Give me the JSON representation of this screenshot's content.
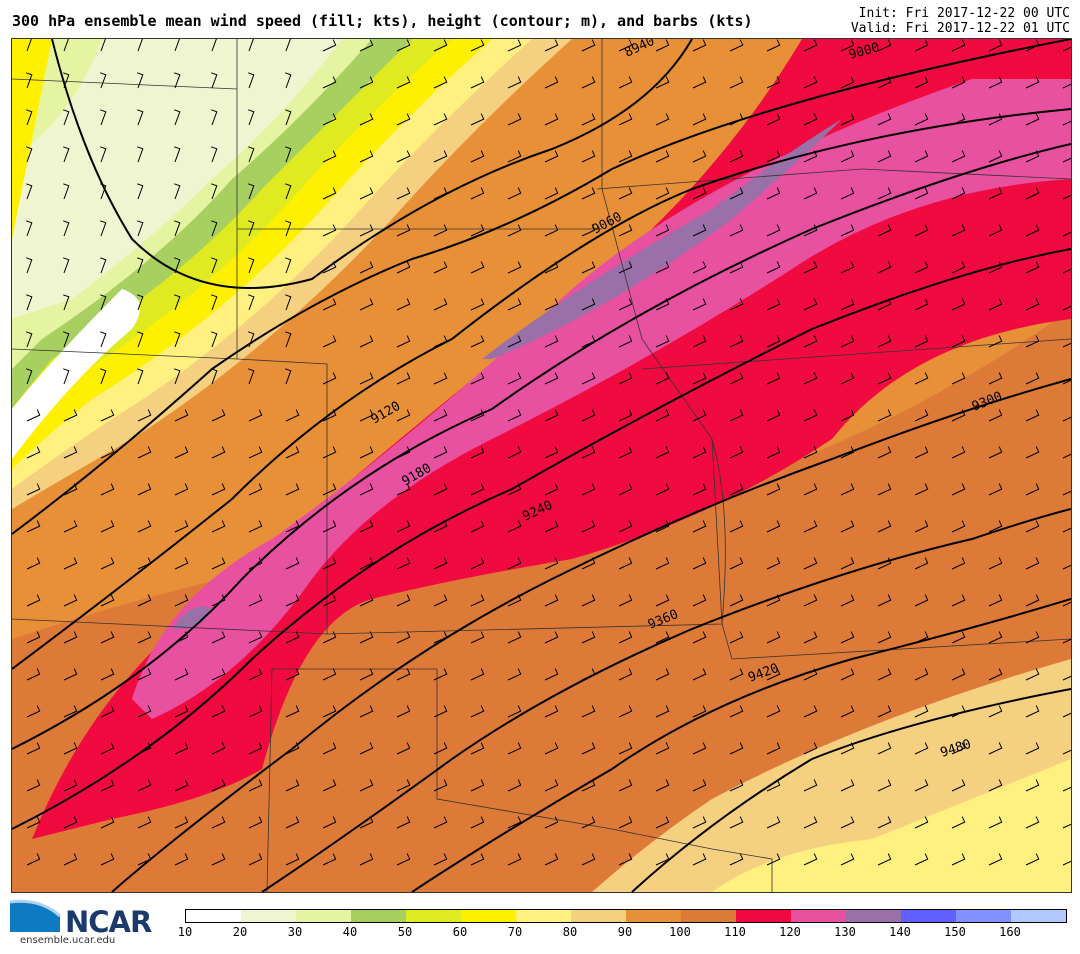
{
  "header": {
    "title": "300 hPa ensemble mean wind speed (fill; kts), height (contour; m), and barbs (kts)",
    "init": "Init: Fri 2017-12-22 00 UTC",
    "valid": "Valid: Fri 2017-12-22 01 UTC"
  },
  "logo": {
    "name": "NCAR",
    "url": "ensemble.ucar.edu"
  },
  "legend": {
    "colors": [
      "#ffffff",
      "#eef5d0",
      "#e5f4a0",
      "#a8d060",
      "#e0ea20",
      "#fff000",
      "#fff080",
      "#f5d080",
      "#e89038",
      "#de7a38",
      "#f00a40",
      "#e850a0",
      "#9a70a8",
      "#6060ff",
      "#8090ff",
      "#b0c8ff"
    ],
    "labels": [
      "10",
      "20",
      "30",
      "40",
      "50",
      "60",
      "70",
      "80",
      "90",
      "100",
      "110",
      "120",
      "130",
      "140",
      "150",
      "160"
    ]
  },
  "contours": {
    "labels": [
      "8940",
      "9000",
      "9060",
      "9120",
      "9180",
      "9240",
      "9300",
      "9360",
      "9420",
      "9480"
    ]
  }
}
